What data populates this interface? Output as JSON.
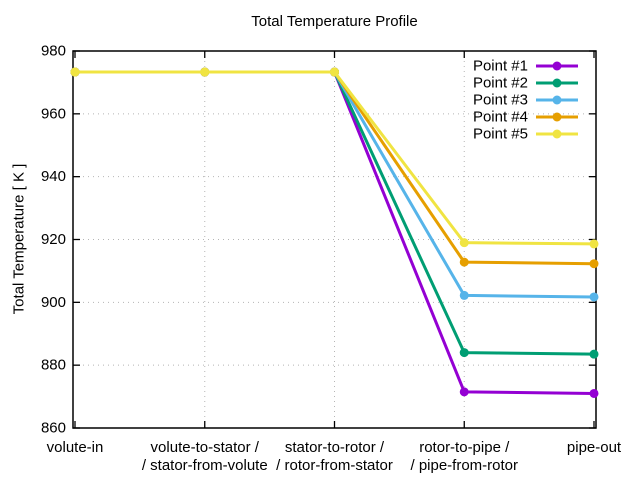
{
  "chart_data": {
    "type": "line",
    "title": "Total Temperature Profile",
    "xlabel": "",
    "ylabel": "Total Temperature [ K ]",
    "ylim": [
      860,
      980
    ],
    "yticks": [
      860,
      880,
      900,
      920,
      940,
      960,
      980
    ],
    "grid": true,
    "grid_style": "dotted",
    "legend_position": "top-right-inside",
    "categories": [
      "volute-in",
      "volute-to-stator / / stator-from-volute",
      "stator-to-rotor / / rotor-from-stator",
      "rotor-to-pipe / / pipe-from-rotor",
      "pipe-out"
    ],
    "category_display_lines": [
      [
        "volute-in"
      ],
      [
        "volute-to-stator /",
        "/ stator-from-volute"
      ],
      [
        "stator-to-rotor /",
        "/ rotor-from-stator"
      ],
      [
        "rotor-to-pipe /",
        "/ pipe-from-rotor"
      ],
      [
        "pipe-out"
      ]
    ],
    "series": [
      {
        "name": "Point #1",
        "color": "#9400d3",
        "values": [
          973.3,
          973.3,
          973.3,
          871.5,
          871.0
        ]
      },
      {
        "name": "Point #2",
        "color": "#009e73",
        "values": [
          973.3,
          973.3,
          973.3,
          884.0,
          883.5
        ]
      },
      {
        "name": "Point #3",
        "color": "#56b4e9",
        "values": [
          973.3,
          973.3,
          973.3,
          902.2,
          901.7
        ]
      },
      {
        "name": "Point #4",
        "color": "#e69f00",
        "values": [
          973.3,
          973.3,
          973.3,
          912.8,
          912.3
        ]
      },
      {
        "name": "Point #5",
        "color": "#f0e442",
        "values": [
          973.3,
          973.3,
          973.3,
          919.0,
          918.6
        ]
      }
    ],
    "colors": {
      "axis": "#000000",
      "grid": "#b5b5b5",
      "text": "#000000",
      "background": "#ffffff"
    }
  }
}
